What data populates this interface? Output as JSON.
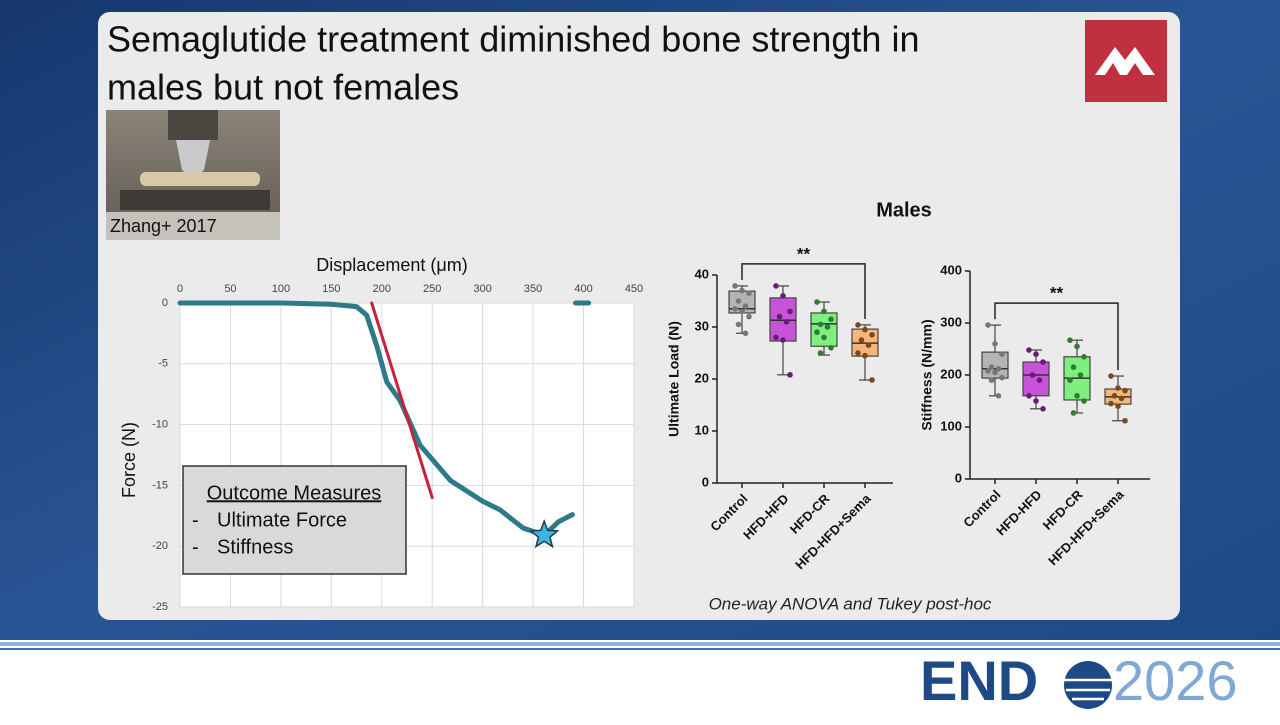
{
  "slide": {
    "title_line1": "Semaglutide treatment diminished bone strength in",
    "title_line2": "males but not females",
    "photo_caption": "Zhang+ 2017",
    "outcome_title": "Outcome Measures",
    "outcome_items": [
      "Ultimate Force",
      "Stiffness"
    ],
    "panel_title": "Males",
    "stats_note": "One-way ANOVA and Tukey post-hoc",
    "footer_brand": "END",
    "footer_year": "2026"
  },
  "chart_data": [
    {
      "type": "line",
      "xlabel": "Displacement (μm)",
      "ylabel": "Force (N)",
      "xlim": [
        0,
        450
      ],
      "xticks": [
        0,
        50,
        100,
        150,
        200,
        250,
        300,
        350,
        400,
        450
      ],
      "ylim": [
        -25,
        0
      ],
      "yticks": [
        0,
        -5,
        -10,
        -15,
        -20,
        -25
      ],
      "grid": true,
      "series": [
        {
          "color": "#2e7a8a",
          "x": [
            0,
            50,
            100,
            150,
            175,
            185,
            195,
            205,
            218,
            238,
            268,
            300,
            317,
            340,
            361,
            375,
            389,
            390,
            392,
            405
          ],
          "values": [
            0,
            0,
            0,
            -0.1,
            -0.3,
            -1,
            -3.5,
            -6.5,
            -8,
            -11.7,
            -14.6,
            -16.3,
            -17,
            -18.5,
            -19.1,
            -18,
            -17.4,
            null,
            0,
            0
          ]
        },
        {
          "color": "#c8203a",
          "x": [
            190,
            250
          ],
          "values": [
            0,
            -16
          ]
        }
      ],
      "marker": {
        "x": 361,
        "y": -19.1,
        "color": "#3fb6e0"
      }
    },
    {
      "type": "box",
      "ylabel": "Ultimate Load (N)",
      "annotation": "**",
      "categories": [
        "Control",
        "HFD-HFD",
        "HFD-CR",
        "HFD-HFD+Sema"
      ],
      "colors": [
        "#b4b4b4",
        "#c653d8",
        "#7ff07f",
        "#f5b67c"
      ],
      "point_colors": [
        "#777777",
        "#6a1b7a",
        "#2e7d32",
        "#7a4a1a"
      ],
      "ylim": [
        0,
        40
      ],
      "yticks": [
        0,
        10,
        20,
        30,
        40
      ],
      "min": [
        28.8,
        20.8,
        24.6,
        19.8
      ],
      "q1": [
        32.7,
        27.3,
        26.3,
        24.4
      ],
      "median": [
        33.5,
        31.3,
        30.6,
        26.9
      ],
      "q3": [
        36.9,
        35.6,
        32.7,
        29.6
      ],
      "max": [
        37.9,
        37.9,
        34.8,
        30.4
      ],
      "points": [
        [
          37.9,
          37,
          36.5,
          35,
          34,
          33.5,
          33,
          32,
          30.5,
          28.8
        ],
        [
          37.9,
          36,
          33,
          32,
          31,
          28,
          27.5,
          20.8
        ],
        [
          34.8,
          33,
          31.5,
          30.5,
          30,
          29,
          28,
          26,
          25
        ],
        [
          30.4,
          29.5,
          28.5,
          27.5,
          26.5,
          25,
          24.5,
          19.8
        ]
      ]
    },
    {
      "type": "box",
      "ylabel": "Stiffness (N/mm)",
      "annotation": "**",
      "categories": [
        "Control",
        "HFD-HFD",
        "HFD-CR",
        "HFD-HFD+Sema"
      ],
      "colors": [
        "#b4b4b4",
        "#c653d8",
        "#7ff07f",
        "#f5b67c"
      ],
      "point_colors": [
        "#777777",
        "#6a1b7a",
        "#2e7d32",
        "#7a4a1a"
      ],
      "ylim": [
        0,
        400
      ],
      "yticks": [
        0,
        100,
        200,
        300,
        400
      ],
      "min": [
        160,
        135,
        127,
        112
      ],
      "q1": [
        194,
        160,
        152,
        144
      ],
      "median": [
        212,
        200,
        194,
        158
      ],
      "q3": [
        244,
        225,
        235,
        173
      ],
      "max": [
        296,
        248,
        267,
        198
      ],
      "points": [
        [
          296,
          260,
          240,
          215,
          212,
          208,
          205,
          195,
          190,
          160
        ],
        [
          248,
          240,
          225,
          200,
          190,
          160,
          150,
          135
        ],
        [
          267,
          255,
          235,
          215,
          200,
          190,
          160,
          150,
          127
        ],
        [
          198,
          175,
          170,
          160,
          155,
          145,
          140,
          112
        ]
      ]
    }
  ]
}
